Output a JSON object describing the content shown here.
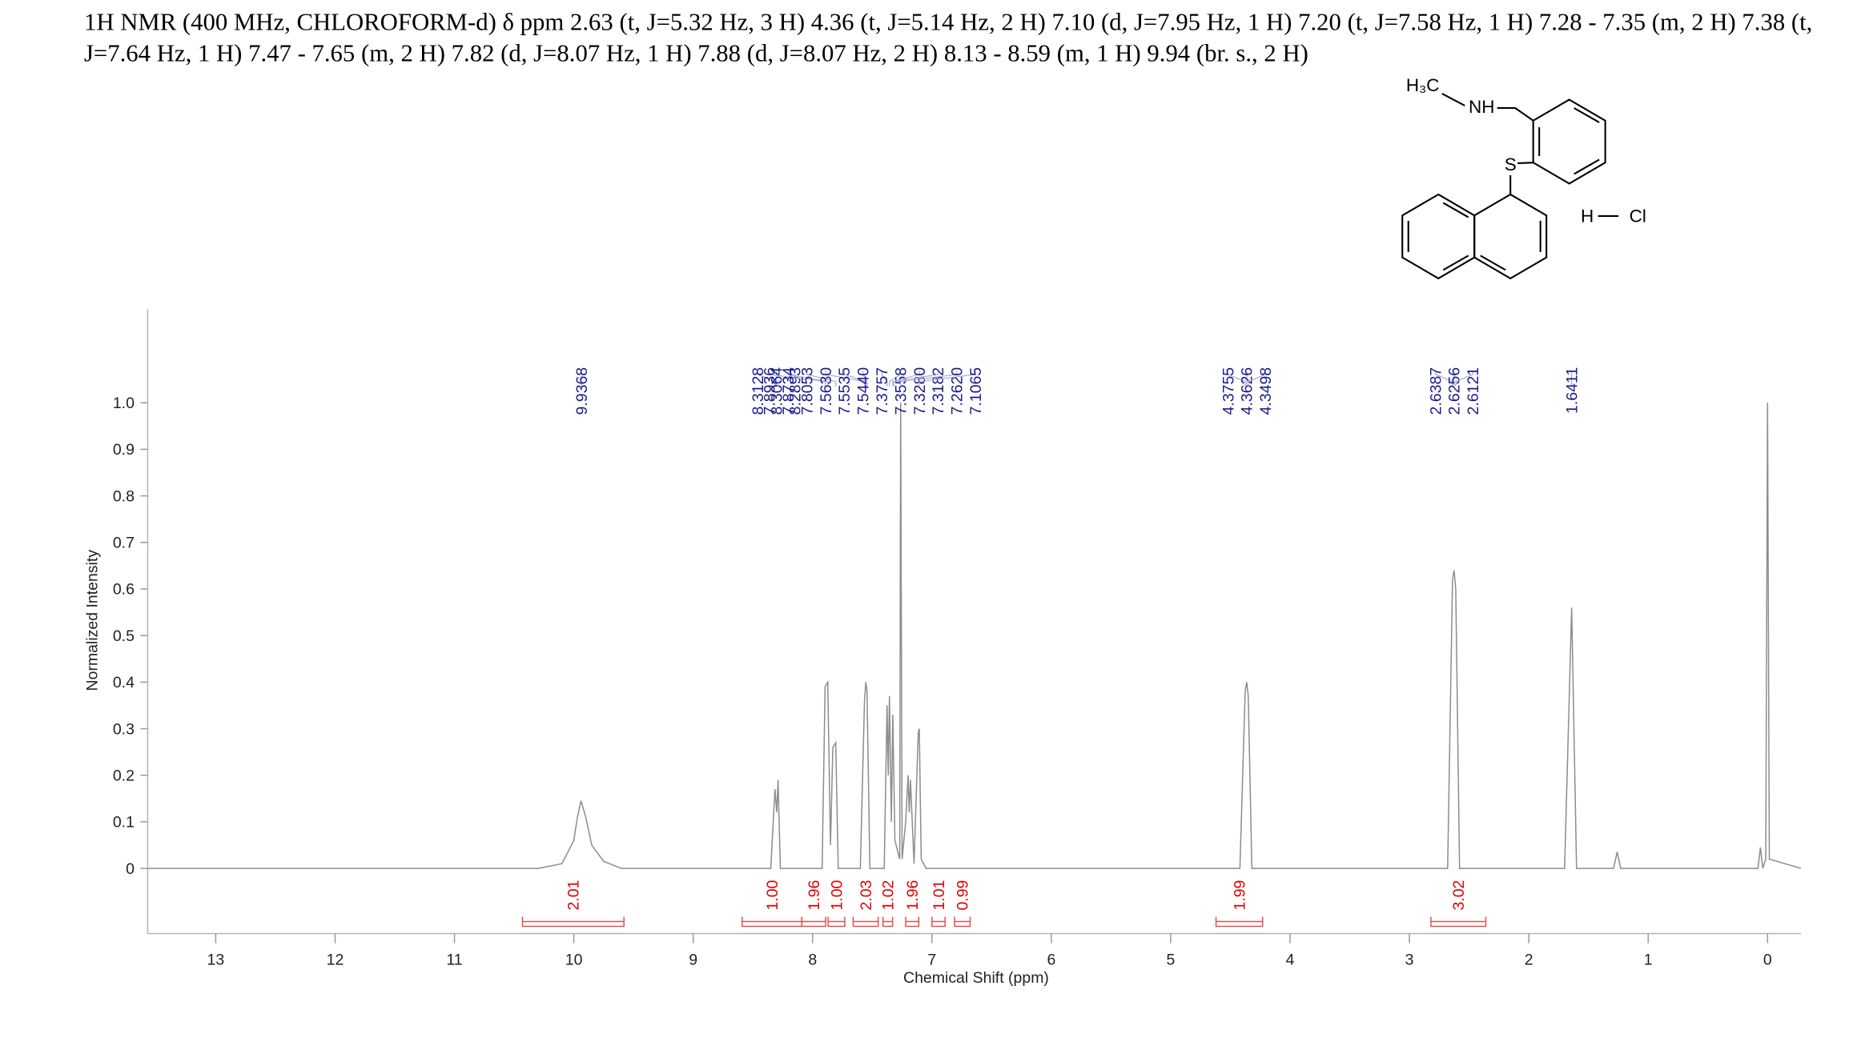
{
  "chart_data": {
    "type": "line",
    "title": "1H NMR (400 MHz, CHLOROFORM-d) δ ppm 2.63 (t, J=5.32 Hz, 3 H) 4.36 (t, J=5.14 Hz, 2 H) 7.10 (d, J=7.95 Hz, 1 H) 7.20 (t, J=7.58 Hz, 1 H) 7.28 - 7.35 (m, 2 H) 7.38 (t, J=7.64 Hz, 1 H) 7.47 - 7.65 (m, 2 H) 7.82 (d, J=8.07 Hz, 1 H) 7.88 (d, J=8.07 Hz, 2 H) 8.13 - 8.59 (m, 1 H) 9.94 (br. s., 2 H)",
    "x_label": "Chemical Shift (ppm)",
    "y_label": "Normalized Intensity",
    "xlim": [
      13.57,
      -0.28
    ],
    "ylim": [
      -0.14,
      1.2
    ],
    "xticks": [
      13,
      12,
      11,
      10,
      9,
      8,
      7,
      6,
      5,
      4,
      3,
      2,
      1,
      0
    ],
    "yticks": [
      0,
      0.1,
      0.2,
      0.3,
      0.4,
      0.5,
      0.6,
      0.7,
      0.8,
      0.9,
      {
        "value": 1,
        "label": "1.0"
      }
    ],
    "series": [
      {
        "color": "#8c8c8c",
        "x": [
          13.57,
          10.3,
          10.1,
          10.0,
          9.97,
          9.94,
          9.9,
          9.85,
          9.75,
          9.6,
          8.35,
          8.315,
          8.3,
          8.289,
          8.27,
          7.92,
          7.895,
          7.873,
          7.85,
          7.83,
          7.806,
          7.785,
          7.6,
          7.565,
          7.554,
          7.544,
          7.52,
          7.4,
          7.376,
          7.366,
          7.356,
          7.34,
          7.328,
          7.31,
          7.27,
          7.262,
          7.25,
          7.22,
          7.2,
          7.19,
          7.18,
          7.15,
          7.115,
          7.106,
          7.09,
          7.05,
          4.42,
          4.376,
          4.363,
          4.35,
          4.32,
          2.68,
          2.639,
          2.626,
          2.612,
          2.58,
          1.7,
          1.641,
          1.6,
          1.29,
          1.26,
          1.23,
          0.08,
          0.06,
          0.04,
          0.015,
          0.0,
          -0.015,
          -0.28
        ],
        "values": [
          0,
          0,
          0.01,
          0.06,
          0.11,
          0.145,
          0.11,
          0.05,
          0.015,
          0,
          0,
          0.17,
          0.12,
          0.19,
          0,
          0,
          0.39,
          0.4,
          0.05,
          0.26,
          0.27,
          0,
          0,
          0.36,
          0.4,
          0.38,
          0,
          0,
          0.35,
          0.2,
          0.37,
          0.1,
          0.33,
          0.06,
          0.02,
          1.0,
          0.02,
          0.1,
          0.2,
          0.12,
          0.19,
          0.01,
          0.29,
          0.3,
          0.02,
          0,
          0,
          0.38,
          0.4,
          0.37,
          0,
          0,
          0.62,
          0.64,
          0.6,
          0,
          0,
          0.56,
          0,
          0,
          0.035,
          0,
          0,
          0.045,
          0,
          0.02,
          1.0,
          0.02,
          0
        ]
      }
    ],
    "peak_labels": [
      9.9368,
      8.3128,
      8.3064,
      8.2893,
      7.8936,
      7.8734,
      7.8053,
      {
        "value": 7.563,
        "label": "7.5630"
      },
      7.5535,
      {
        "value": 7.544,
        "label": "7.5440"
      },
      7.3757,
      7.3558,
      {
        "value": 7.328,
        "label": "7.3280"
      },
      7.3182,
      {
        "value": 7.262,
        "label": "7.2620"
      },
      7.1065,
      4.3755,
      4.3626,
      4.3498,
      2.6387,
      2.6256,
      2.6121,
      1.6411
    ],
    "integrals": {
      "ranges": [
        [
          10.43,
          9.58
        ],
        [
          8.59,
          8.09
        ],
        [
          8.09,
          7.89
        ],
        [
          7.87,
          7.73
        ],
        [
          7.66,
          7.45
        ],
        [
          7.41,
          7.33
        ],
        [
          7.22,
          7.11
        ],
        [
          7.0,
          6.89
        ],
        [
          6.81,
          6.68
        ],
        [
          4.62,
          4.23
        ],
        [
          2.82,
          2.36
        ]
      ],
      "values": [
        2.01,
        1.0,
        1.96,
        1.0,
        2.03,
        1.02,
        1.96,
        1.01,
        0.99,
        1.99,
        3.02
      ],
      "value_labels": [
        "2.01",
        "1.00",
        "1.96",
        "1.00",
        "2.03",
        "1.02",
        "1.96",
        "1.01",
        "0.99",
        "1.99",
        "3.02"
      ]
    },
    "structure": {
      "methyl": "H₃C",
      "amine": "NH",
      "sulfur": "S",
      "hydrogen": "H",
      "chlorine": "Cl"
    }
  }
}
